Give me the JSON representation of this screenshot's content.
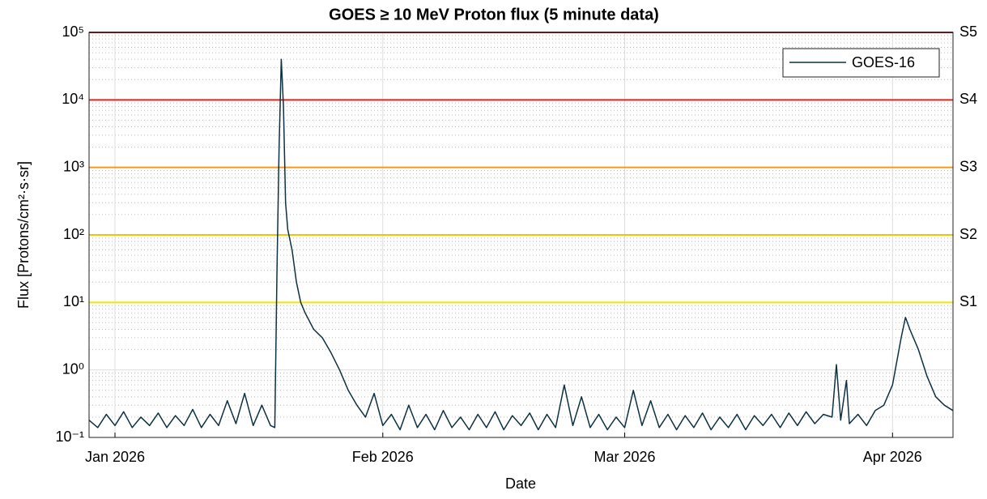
{
  "chart_data": {
    "type": "line",
    "title": "GOES  ≥ 10 MeV Proton flux (5 minute data)",
    "xlabel": "Date",
    "ylabel": "Flux [Protons/cm²·s·sr]",
    "log_y": true,
    "grid": true,
    "legend": "upper right",
    "xlim": [
      "2025-12-29",
      "2026-04-08"
    ],
    "xticks": [
      {
        "value": "2026-01-01",
        "label": "Jan 2026"
      },
      {
        "value": "2026-02-01",
        "label": "Feb 2026"
      },
      {
        "value": "2026-03-01",
        "label": "Mar 2026"
      },
      {
        "value": "2026-04-01",
        "label": "Apr 2026"
      }
    ],
    "ylim": [
      0.1,
      100000
    ],
    "yticks": [
      {
        "value": 0.1,
        "label": "10⁻¹"
      },
      {
        "value": 1,
        "label": "10⁰"
      },
      {
        "value": 10,
        "label": "10¹"
      },
      {
        "value": 100,
        "label": "10²"
      },
      {
        "value": 1000,
        "label": "10³"
      },
      {
        "value": 10000,
        "label": "10⁴"
      },
      {
        "value": 100000,
        "label": "10⁵"
      }
    ],
    "thresholds": [
      {
        "value": 10,
        "label": "S1",
        "color": "#f2e600"
      },
      {
        "value": 100,
        "label": "S2",
        "color": "#f5c400"
      },
      {
        "value": 1000,
        "label": "S3",
        "color": "#f59a1a"
      },
      {
        "value": 10000,
        "label": "S4",
        "color": "#e8201a"
      },
      {
        "value": 100000,
        "label": "S5",
        "color": "#a01010"
      }
    ],
    "series": [
      {
        "name": "GOES-16",
        "color": "#0d3142",
        "x": [
          "2025-12-29",
          "2025-12-30",
          "2025-12-31",
          "2026-01-01",
          "2026-01-02",
          "2026-01-03",
          "2026-01-04",
          "2026-01-05",
          "2026-01-06",
          "2026-01-07",
          "2026-01-08",
          "2026-01-09",
          "2026-01-10",
          "2026-01-11",
          "2026-01-12",
          "2026-01-13",
          "2026-01-14",
          "2026-01-15",
          "2026-01-16",
          "2026-01-17",
          "2026-01-18",
          "2026-01-19",
          "2026-01-19T12:00",
          "2026-01-19T18:00",
          "2026-01-20T00:00",
          "2026-01-20T06:00",
          "2026-01-20T12:00",
          "2026-01-20T18:00",
          "2026-01-21",
          "2026-01-21T12:00",
          "2026-01-22",
          "2026-01-22T12:00",
          "2026-01-23",
          "2026-01-24",
          "2026-01-25",
          "2026-01-26",
          "2026-01-27",
          "2026-01-28",
          "2026-01-29",
          "2026-01-30",
          "2026-01-31",
          "2026-02-01",
          "2026-02-02",
          "2026-02-03",
          "2026-02-04",
          "2026-02-05",
          "2026-02-06",
          "2026-02-07",
          "2026-02-08",
          "2026-02-09",
          "2026-02-10",
          "2026-02-11",
          "2026-02-12",
          "2026-02-13",
          "2026-02-14",
          "2026-02-15",
          "2026-02-16",
          "2026-02-17",
          "2026-02-18",
          "2026-02-19",
          "2026-02-20",
          "2026-02-21",
          "2026-02-22",
          "2026-02-23",
          "2026-02-24",
          "2026-02-25",
          "2026-02-26",
          "2026-02-27",
          "2026-02-28",
          "2026-03-01",
          "2026-03-02",
          "2026-03-03",
          "2026-03-04",
          "2026-03-05",
          "2026-03-06",
          "2026-03-07",
          "2026-03-08",
          "2026-03-09",
          "2026-03-10",
          "2026-03-11",
          "2026-03-12",
          "2026-03-13",
          "2026-03-14",
          "2026-03-15",
          "2026-03-16",
          "2026-03-17",
          "2026-03-18",
          "2026-03-19",
          "2026-03-20",
          "2026-03-21",
          "2026-03-22",
          "2026-03-23",
          "2026-03-24",
          "2026-03-25",
          "2026-03-25T12:00",
          "2026-03-26",
          "2026-03-26T16:00",
          "2026-03-27",
          "2026-03-28",
          "2026-03-29",
          "2026-03-30",
          "2026-03-31",
          "2026-04-01",
          "2026-04-02",
          "2026-04-02T12:00",
          "2026-04-03",
          "2026-04-04",
          "2026-04-05",
          "2026-04-06",
          "2026-04-07",
          "2026-04-08"
        ],
        "values": [
          0.18,
          0.14,
          0.22,
          0.15,
          0.24,
          0.14,
          0.2,
          0.15,
          0.23,
          0.14,
          0.21,
          0.15,
          0.26,
          0.14,
          0.22,
          0.15,
          0.35,
          0.16,
          0.45,
          0.15,
          0.3,
          0.15,
          0.14,
          30,
          2000,
          40000,
          8000,
          300,
          120,
          60,
          20,
          10,
          7,
          4,
          3,
          1.8,
          1,
          0.5,
          0.3,
          0.2,
          0.45,
          0.15,
          0.22,
          0.13,
          0.3,
          0.14,
          0.22,
          0.13,
          0.25,
          0.14,
          0.2,
          0.13,
          0.22,
          0.14,
          0.24,
          0.13,
          0.21,
          0.15,
          0.23,
          0.13,
          0.22,
          0.14,
          0.6,
          0.15,
          0.4,
          0.14,
          0.22,
          0.13,
          0.2,
          0.14,
          0.5,
          0.15,
          0.35,
          0.14,
          0.22,
          0.13,
          0.21,
          0.14,
          0.23,
          0.13,
          0.2,
          0.14,
          0.22,
          0.13,
          0.21,
          0.15,
          0.22,
          0.14,
          0.23,
          0.15,
          0.24,
          0.16,
          0.22,
          0.2,
          1.2,
          0.18,
          0.7,
          0.16,
          0.22,
          0.15,
          0.25,
          0.3,
          0.6,
          3,
          6,
          4,
          2,
          0.8,
          0.4,
          0.3,
          0.25
        ]
      }
    ]
  }
}
